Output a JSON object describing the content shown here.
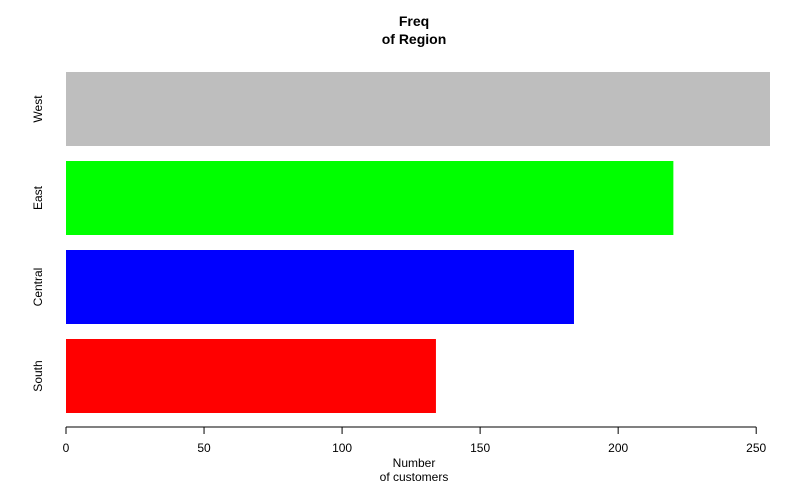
{
  "chart_data": {
    "type": "bar",
    "orientation": "horizontal",
    "title": [
      "Freq",
      "of Region"
    ],
    "xlabel": [
      "Number",
      "of customers"
    ],
    "ylabel": "",
    "categories": [
      "South",
      "Central",
      "East",
      "West"
    ],
    "values": [
      134,
      184,
      220,
      255
    ],
    "colors": [
      "#ff0000",
      "#0000ff",
      "#00ff00",
      "#bebebe"
    ],
    "xlim": [
      0,
      255
    ],
    "xticks": [
      0,
      50,
      100,
      150,
      200,
      250
    ],
    "grid": false,
    "legend": false
  }
}
